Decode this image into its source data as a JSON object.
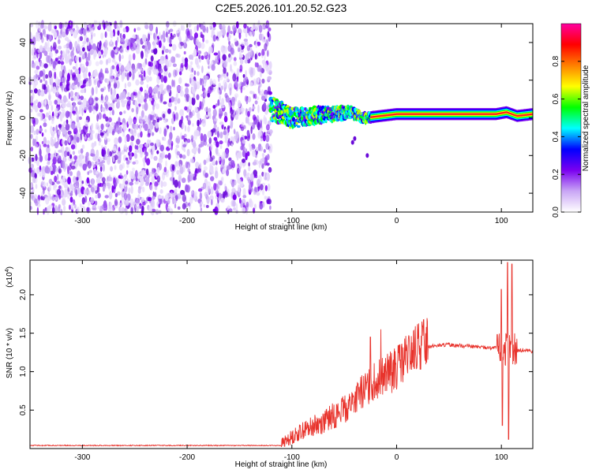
{
  "title": "C2E5.2026.101.20.52.G23",
  "chart_data": [
    {
      "type": "heatmap",
      "xlabel": "Height of straight line (km)",
      "ylabel": "Frequency (Hz)",
      "xlim": [
        -350,
        130
      ],
      "ylim": [
        -50,
        50
      ],
      "xticks": [
        -300,
        -200,
        -100,
        0,
        100
      ],
      "yticks": [
        -40,
        -20,
        0,
        20,
        40
      ],
      "noise_region": {
        "x": [
          -350,
          -120
        ],
        "y": [
          -50,
          50
        ]
      },
      "signal_ridge": [
        {
          "x": -120,
          "y": 5
        },
        {
          "x": -100,
          "y": 0
        },
        {
          "x": -80,
          "y": 1
        },
        {
          "x": -60,
          "y": 2
        },
        {
          "x": -45,
          "y": 3
        },
        {
          "x": -30,
          "y": 0
        },
        {
          "x": -15,
          "y": 1
        },
        {
          "x": 0,
          "y": 2
        },
        {
          "x": 50,
          "y": 2
        },
        {
          "x": 95,
          "y": 2
        },
        {
          "x": 105,
          "y": 3
        },
        {
          "x": 115,
          "y": 1
        },
        {
          "x": 130,
          "y": 2
        }
      ],
      "colorbar": {
        "label": "Normalized spectral amplitude",
        "range": [
          0,
          1
        ],
        "ticks": [
          0.0,
          0.2,
          0.4,
          0.6,
          0.8
        ],
        "colors": [
          "#ffffff",
          "#c9a6f5",
          "#7a00f0",
          "#0000ff",
          "#00ffff",
          "#00ff00",
          "#ffff00",
          "#ff8000",
          "#ff0000",
          "#ff00a0"
        ]
      }
    },
    {
      "type": "line",
      "xlabel": "Height of straight line (km)",
      "ylabel": "SNR (10 * v/v)",
      "yscale_label": "(x10",
      "yscale_exp": "4",
      "yscale_close": ")",
      "xlim": [
        -350,
        130
      ],
      "ylim": [
        0,
        2.45
      ],
      "xticks": [
        -300,
        -200,
        -100,
        0,
        100
      ],
      "yticks": [
        0.5,
        1.0,
        1.5,
        2.0
      ],
      "series": [
        {
          "name": "SNR",
          "color": "#e8332c",
          "points": [
            {
              "x": -350,
              "y": 0.04
            },
            {
              "x": -110,
              "y": 0.04
            },
            {
              "x": -100,
              "y": 0.12
            },
            {
              "x": -90,
              "y": 0.2
            },
            {
              "x": -70,
              "y": 0.3
            },
            {
              "x": -50,
              "y": 0.45
            },
            {
              "x": -30,
              "y": 0.7
            },
            {
              "x": -15,
              "y": 0.85
            },
            {
              "x": 0,
              "y": 0.95
            },
            {
              "x": 15,
              "y": 1.15
            },
            {
              "x": 30,
              "y": 1.33
            },
            {
              "x": 50,
              "y": 1.35
            },
            {
              "x": 80,
              "y": 1.32
            },
            {
              "x": 100,
              "y": 1.3
            },
            {
              "x": 110,
              "y": 1.28
            },
            {
              "x": 130,
              "y": 1.27
            }
          ],
          "spikes": [
            {
              "x": -25,
              "y": 1.45
            },
            {
              "x": -15,
              "y": 1.55
            },
            {
              "x": 3,
              "y": 1.35
            },
            {
              "x": 100,
              "y": 2.07
            },
            {
              "x": 101,
              "y": 0.3
            },
            {
              "x": 106,
              "y": 2.42
            },
            {
              "x": 107,
              "y": 0.12
            },
            {
              "x": 110,
              "y": 2.4
            }
          ]
        }
      ]
    }
  ]
}
